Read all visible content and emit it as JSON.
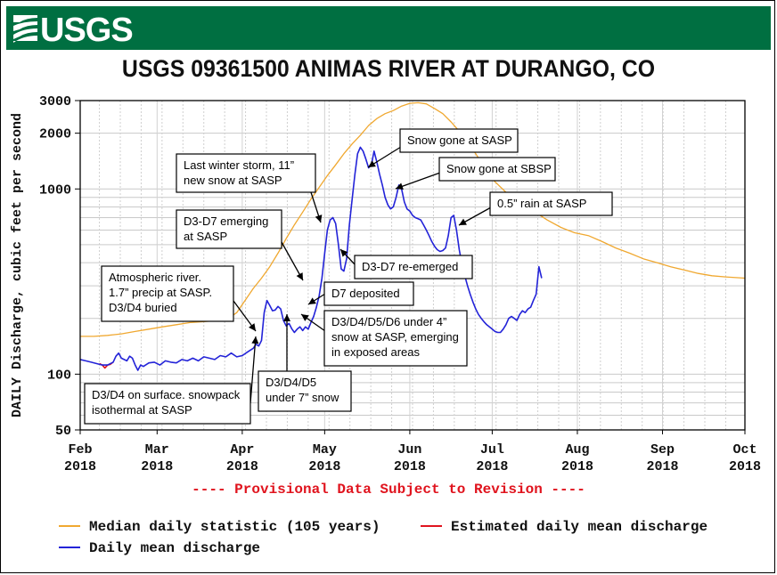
{
  "header": {
    "logo_text": "USGS",
    "title": "USGS 09361500 ANIMAS RIVER AT DURANGO, CO"
  },
  "provisional_note": "---- Provisional Data Subject to Revision ----",
  "colors": {
    "banner": "#006f41",
    "median": "#f0a830",
    "estimated": "#e0141e",
    "daily": "#2323d8",
    "provisional": "#e0141e"
  },
  "chart_data": {
    "type": "line",
    "title": "USGS 09361500 ANIMAS RIVER AT DURANGO, CO",
    "ylabel": "DAILY Discharge, cubic feet per second",
    "xlabel": "",
    "yscale": "log",
    "ylim": [
      50,
      3000
    ],
    "xlim_days": [
      0,
      242
    ],
    "y_ticks": [
      50,
      100,
      1000,
      2000,
      3000
    ],
    "x_ticks": [
      {
        "day": 0,
        "line1": "Feb",
        "line2": "2018"
      },
      {
        "day": 28,
        "line1": "Mar",
        "line2": "2018"
      },
      {
        "day": 59,
        "line1": "Apr",
        "line2": "2018"
      },
      {
        "day": 89,
        "line1": "May",
        "line2": "2018"
      },
      {
        "day": 120,
        "line1": "Jun",
        "line2": "2018"
      },
      {
        "day": 150,
        "line1": "Jul",
        "line2": "2018"
      },
      {
        "day": 181,
        "line1": "Aug",
        "line2": "2018"
      },
      {
        "day": 212,
        "line1": "Sep",
        "line2": "2018"
      },
      {
        "day": 242,
        "line1": "Oct",
        "line2": "2018"
      }
    ],
    "series": [
      {
        "name": "Median daily statistic (105 years)",
        "color": "#f0a830",
        "points": [
          [
            0,
            160
          ],
          [
            5,
            160
          ],
          [
            10,
            162
          ],
          [
            15,
            165
          ],
          [
            20,
            170
          ],
          [
            25,
            175
          ],
          [
            30,
            180
          ],
          [
            35,
            185
          ],
          [
            40,
            190
          ],
          [
            45,
            192
          ],
          [
            50,
            195
          ],
          [
            54,
            200
          ],
          [
            57,
            215
          ],
          [
            60,
            250
          ],
          [
            63,
            290
          ],
          [
            66,
            330
          ],
          [
            69,
            380
          ],
          [
            72,
            450
          ],
          [
            75,
            540
          ],
          [
            78,
            640
          ],
          [
            81,
            750
          ],
          [
            84,
            880
          ],
          [
            87,
            1020
          ],
          [
            90,
            1180
          ],
          [
            93,
            1350
          ],
          [
            96,
            1550
          ],
          [
            99,
            1750
          ],
          [
            102,
            1950
          ],
          [
            105,
            2200
          ],
          [
            108,
            2400
          ],
          [
            111,
            2550
          ],
          [
            114,
            2650
          ],
          [
            117,
            2800
          ],
          [
            120,
            2900
          ],
          [
            123,
            2920
          ],
          [
            126,
            2880
          ],
          [
            129,
            2720
          ],
          [
            132,
            2550
          ],
          [
            135,
            2300
          ],
          [
            138,
            2050
          ],
          [
            141,
            1800
          ],
          [
            144,
            1550
          ],
          [
            147,
            1320
          ],
          [
            150,
            1130
          ],
          [
            155,
            960
          ],
          [
            160,
            850
          ],
          [
            165,
            760
          ],
          [
            170,
            680
          ],
          [
            175,
            620
          ],
          [
            180,
            580
          ],
          [
            185,
            560
          ],
          [
            190,
            520
          ],
          [
            195,
            480
          ],
          [
            200,
            450
          ],
          [
            205,
            420
          ],
          [
            210,
            400
          ],
          [
            215,
            380
          ],
          [
            220,
            365
          ],
          [
            225,
            350
          ],
          [
            230,
            340
          ],
          [
            235,
            335
          ],
          [
            242,
            330
          ]
        ]
      },
      {
        "name": "Estimated daily mean discharge",
        "color": "#e0141e",
        "points": [
          [
            7,
            114
          ],
          [
            8,
            112
          ],
          [
            9,
            108
          ],
          [
            10,
            112
          ],
          [
            11,
            113
          ],
          [
            12,
            116
          ]
        ]
      },
      {
        "name": "Daily mean discharge",
        "color": "#2323d8",
        "points": [
          [
            0,
            120
          ],
          [
            2,
            118
          ],
          [
            4,
            116
          ],
          [
            6,
            114
          ],
          [
            8,
            112
          ],
          [
            10,
            112
          ],
          [
            12,
            116
          ],
          [
            13,
            125
          ],
          [
            14,
            130
          ],
          [
            15,
            122
          ],
          [
            17,
            118
          ],
          [
            18,
            125
          ],
          [
            19,
            122
          ],
          [
            20,
            112
          ],
          [
            21,
            105
          ],
          [
            22,
            112
          ],
          [
            23,
            110
          ],
          [
            25,
            115
          ],
          [
            27,
            116
          ],
          [
            29,
            112
          ],
          [
            31,
            118
          ],
          [
            33,
            116
          ],
          [
            35,
            115
          ],
          [
            37,
            120
          ],
          [
            39,
            118
          ],
          [
            41,
            122
          ],
          [
            43,
            118
          ],
          [
            45,
            124
          ],
          [
            47,
            122
          ],
          [
            49,
            120
          ],
          [
            51,
            126
          ],
          [
            53,
            124
          ],
          [
            55,
            130
          ],
          [
            57,
            124
          ],
          [
            59,
            126
          ],
          [
            61,
            132
          ],
          [
            63,
            138
          ],
          [
            64,
            145
          ],
          [
            65,
            142
          ],
          [
            66,
            152
          ],
          [
            67,
            215
          ],
          [
            68,
            250
          ],
          [
            69,
            235
          ],
          [
            70,
            220
          ],
          [
            71,
            222
          ],
          [
            72,
            232
          ],
          [
            73,
            225
          ],
          [
            74,
            195
          ],
          [
            75,
            182
          ],
          [
            76,
            188
          ],
          [
            77,
            176
          ],
          [
            78,
            168
          ],
          [
            79,
            175
          ],
          [
            80,
            180
          ],
          [
            81,
            172
          ],
          [
            82,
            180
          ],
          [
            83,
            175
          ],
          [
            84,
            190
          ],
          [
            85,
            205
          ],
          [
            86,
            230
          ],
          [
            87,
            265
          ],
          [
            88,
            330
          ],
          [
            89,
            450
          ],
          [
            90,
            600
          ],
          [
            91,
            680
          ],
          [
            92,
            700
          ],
          [
            93,
            650
          ],
          [
            94,
            500
          ],
          [
            95,
            370
          ],
          [
            96,
            360
          ],
          [
            97,
            420
          ],
          [
            98,
            640
          ],
          [
            99,
            880
          ],
          [
            100,
            1200
          ],
          [
            101,
            1550
          ],
          [
            102,
            1680
          ],
          [
            103,
            1600
          ],
          [
            104,
            1450
          ],
          [
            105,
            1300
          ],
          [
            106,
            1350
          ],
          [
            107,
            1600
          ],
          [
            108,
            1400
          ],
          [
            109,
            1200
          ],
          [
            110,
            1050
          ],
          [
            111,
            900
          ],
          [
            112,
            820
          ],
          [
            113,
            780
          ],
          [
            114,
            800
          ],
          [
            115,
            900
          ],
          [
            116,
            1050
          ],
          [
            117,
            1000
          ],
          [
            118,
            850
          ],
          [
            119,
            780
          ],
          [
            120,
            760
          ],
          [
            121,
            720
          ],
          [
            122,
            700
          ],
          [
            123,
            690
          ],
          [
            124,
            680
          ],
          [
            125,
            640
          ],
          [
            126,
            600
          ],
          [
            127,
            560
          ],
          [
            128,
            520
          ],
          [
            129,
            490
          ],
          [
            130,
            470
          ],
          [
            131,
            460
          ],
          [
            132,
            465
          ],
          [
            133,
            480
          ],
          [
            134,
            560
          ],
          [
            135,
            700
          ],
          [
            136,
            720
          ],
          [
            137,
            600
          ],
          [
            138,
            470
          ],
          [
            139,
            390
          ],
          [
            140,
            340
          ],
          [
            141,
            300
          ],
          [
            142,
            270
          ],
          [
            143,
            245
          ],
          [
            144,
            225
          ],
          [
            145,
            210
          ],
          [
            146,
            200
          ],
          [
            147,
            192
          ],
          [
            148,
            185
          ],
          [
            149,
            180
          ],
          [
            150,
            175
          ],
          [
            151,
            170
          ],
          [
            152,
            168
          ],
          [
            153,
            168
          ],
          [
            154,
            175
          ],
          [
            155,
            185
          ],
          [
            156,
            200
          ],
          [
            157,
            205
          ],
          [
            158,
            200
          ],
          [
            159,
            195
          ],
          [
            160,
            210
          ],
          [
            161,
            220
          ],
          [
            162,
            215
          ],
          [
            163,
            225
          ],
          [
            164,
            230
          ],
          [
            165,
            250
          ],
          [
            166,
            270
          ],
          [
            167,
            380
          ],
          [
            168,
            330
          ]
        ]
      }
    ],
    "annotations": [
      {
        "text": "Snow gone at SASP"
      },
      {
        "text": "Snow gone at SBSP"
      },
      {
        "text": "Last winter storm, 11”|new snow at SASP"
      },
      {
        "text": "0.5” rain at SASP"
      },
      {
        "text": "D3-D7 emerging|at SASP"
      },
      {
        "text": "D3-D7 re-emerged"
      },
      {
        "text": "Atmospheric river.|1.7” precip at SASP.|D3/D4 buried"
      },
      {
        "text": "D7 deposited"
      },
      {
        "text": "D3/D4/D5/D6 under 4”|snow at SASP, emerging|in exposed areas"
      },
      {
        "text": "D3/D4/D5|under 7” snow"
      },
      {
        "text": "D3/D4 on surface. snowpack|isothermal at SASP"
      }
    ],
    "legend": [
      {
        "label": "Median daily statistic (105 years)",
        "color": "#f0a830"
      },
      {
        "label": "Estimated daily mean discharge",
        "color": "#e0141e"
      },
      {
        "label": "Daily mean discharge",
        "color": "#2323d8"
      }
    ]
  }
}
